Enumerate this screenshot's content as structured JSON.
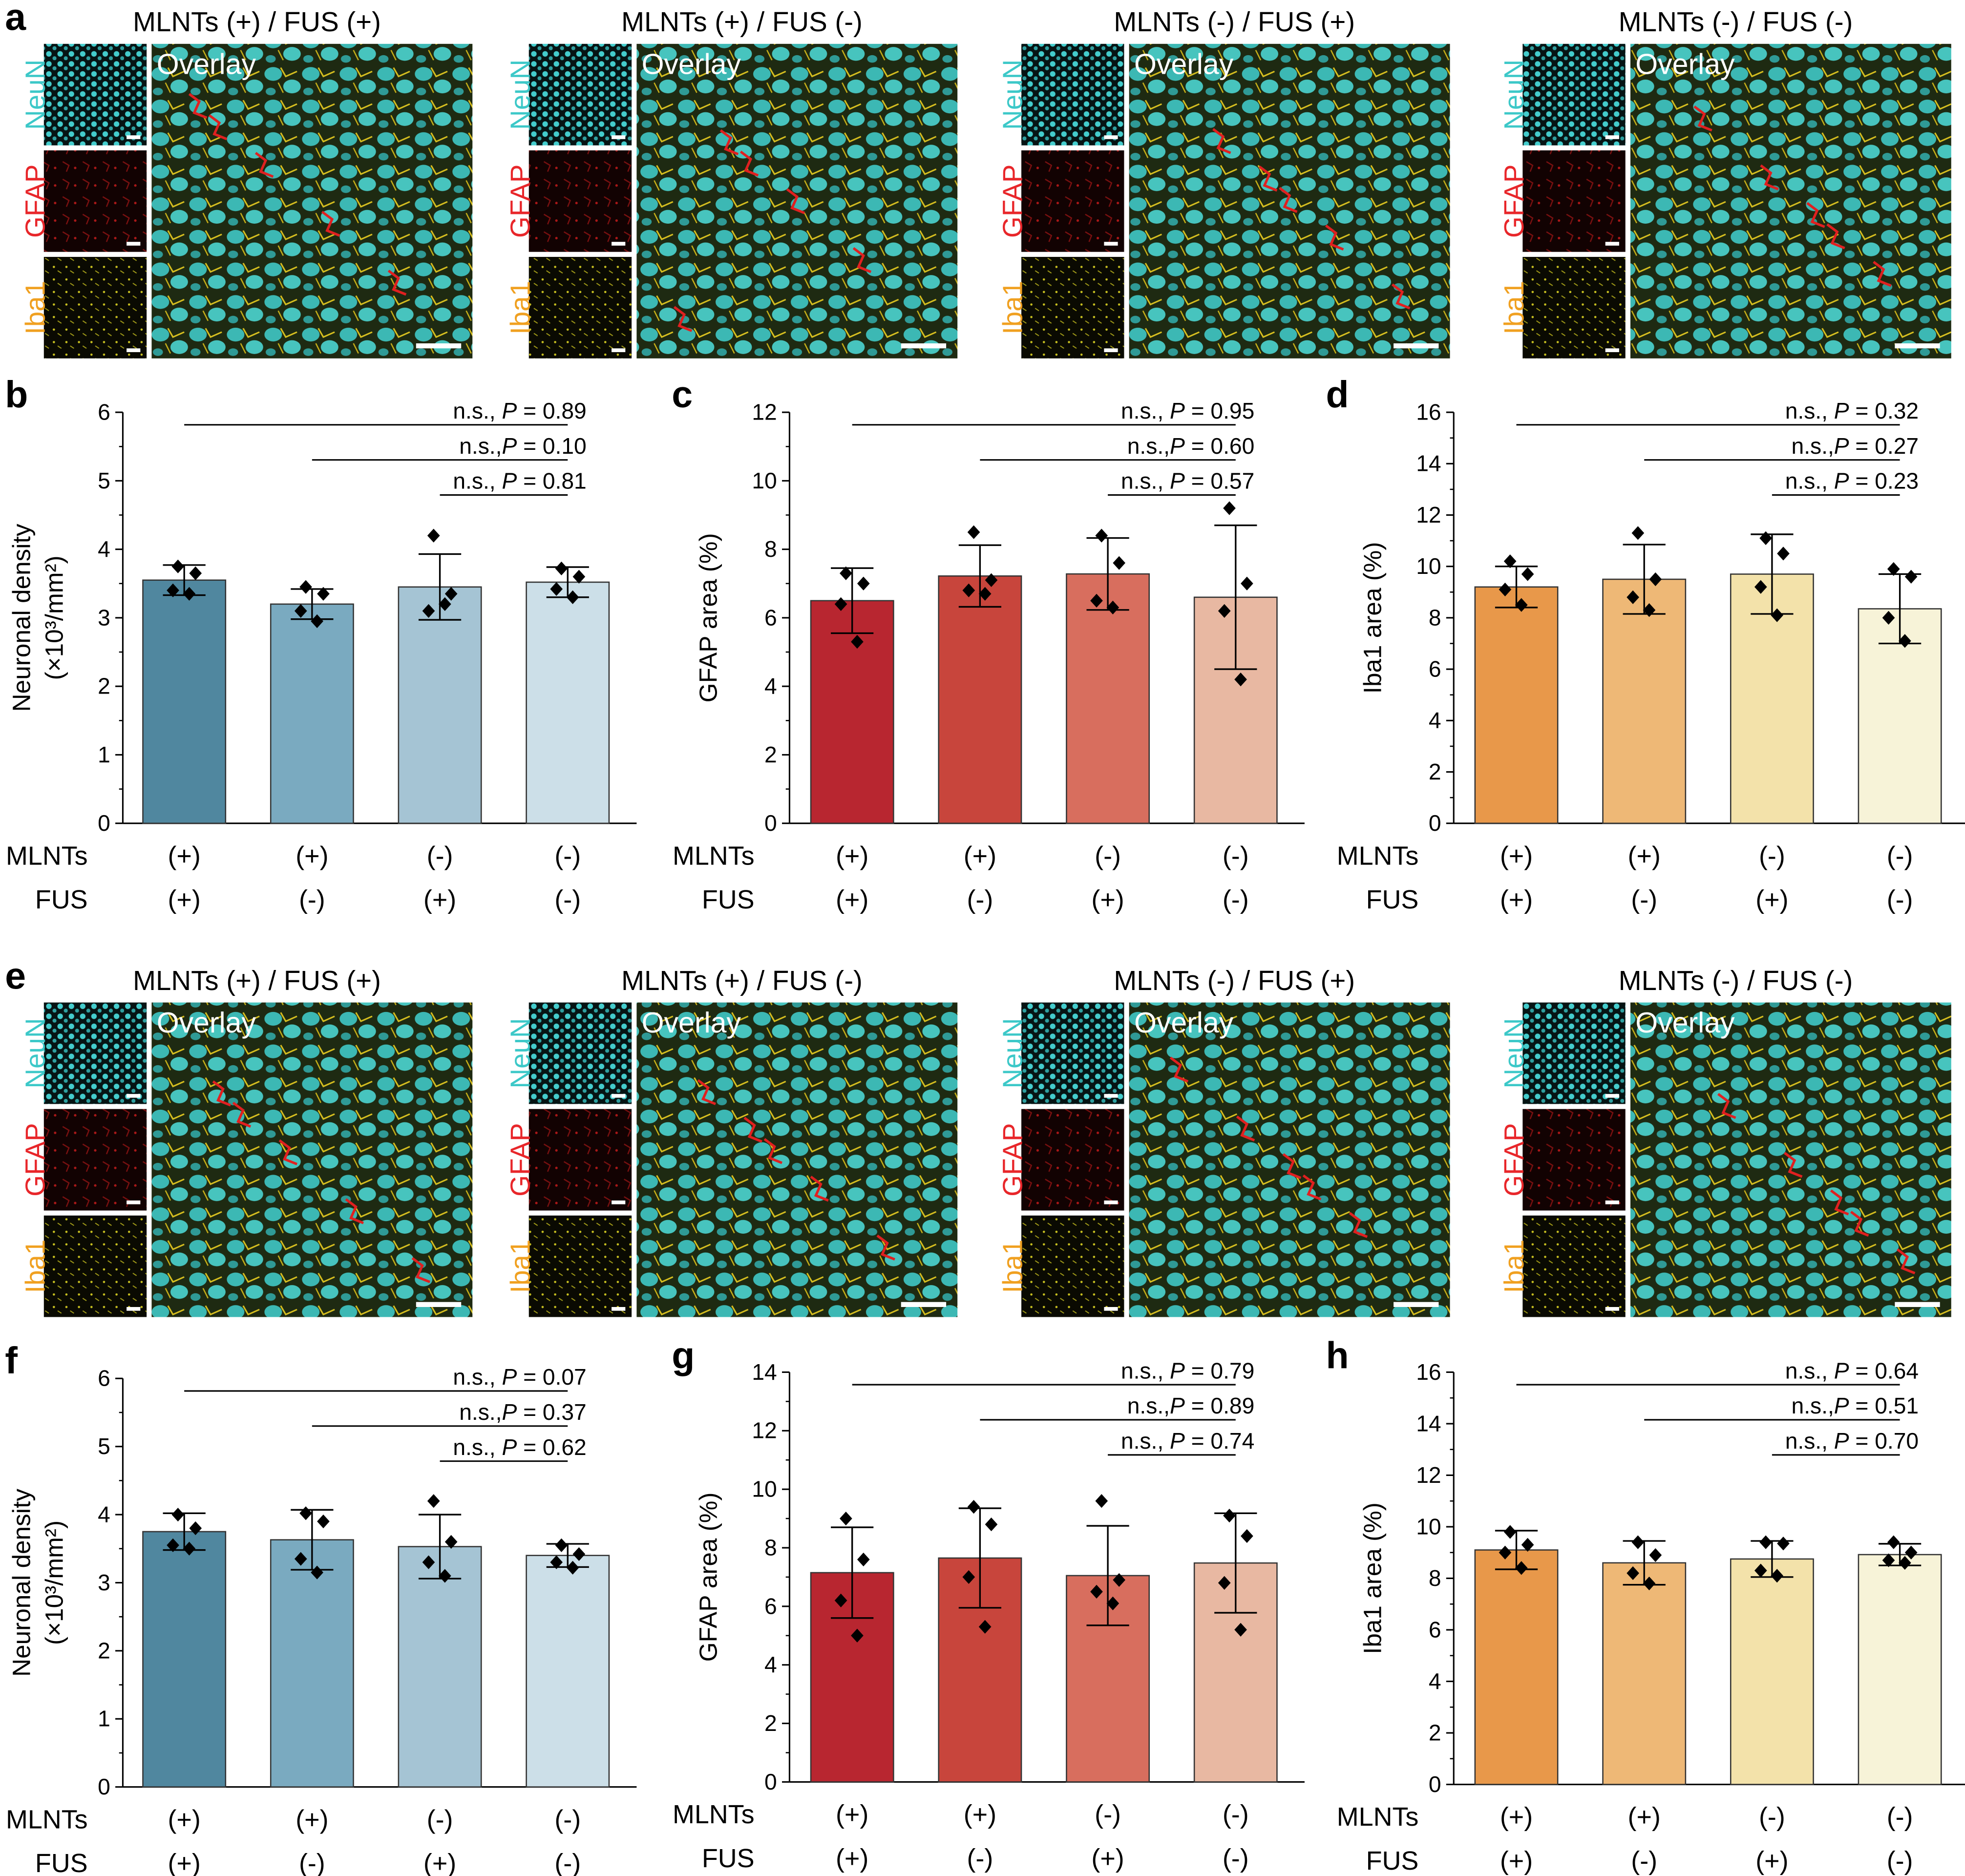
{
  "figure": {
    "panel_labels": {
      "a": "a",
      "b": "b",
      "c": "c",
      "d": "d",
      "e": "e",
      "f": "f",
      "g": "g",
      "h": "h"
    },
    "micrograph_rows": [
      {
        "id": "a",
        "panels": [
          {
            "title": "MLNTs (+) / FUS (+)",
            "channels": [
              "NeuN",
              "GFAP",
              "Iba1"
            ],
            "overlay_label": "Overlay"
          },
          {
            "title": "MLNTs (+) / FUS (-)",
            "channels": [
              "NeuN",
              "GFAP",
              "Iba1"
            ],
            "overlay_label": "Overlay"
          },
          {
            "title": "MLNTs (-) / FUS (+)",
            "channels": [
              "NeuN",
              "GFAP",
              "Iba1"
            ],
            "overlay_label": "Overlay"
          },
          {
            "title": "MLNTs (-) / FUS (-)",
            "channels": [
              "NeuN",
              "GFAP",
              "Iba1"
            ],
            "overlay_label": "Overlay"
          }
        ]
      },
      {
        "id": "e",
        "panels": [
          {
            "title": "MLNTs (+) / FUS (+)",
            "channels": [
              "NeuN",
              "GFAP",
              "Iba1"
            ],
            "overlay_label": "Overlay"
          },
          {
            "title": "MLNTs (+) / FUS (-)",
            "channels": [
              "NeuN",
              "GFAP",
              "Iba1"
            ],
            "overlay_label": "Overlay"
          },
          {
            "title": "MLNTs (-) / FUS (+)",
            "channels": [
              "NeuN",
              "GFAP",
              "Iba1"
            ],
            "overlay_label": "Overlay"
          },
          {
            "title": "MLNTs (-) / FUS (-)",
            "channels": [
              "NeuN",
              "GFAP",
              "Iba1"
            ],
            "overlay_label": "Overlay"
          }
        ]
      }
    ],
    "channel_colors": {
      "NeuN": "#3cc8c8",
      "GFAP": "#e8262a",
      "Iba1": "#f0a020"
    },
    "group_row_labels": [
      "MLNTs",
      "FUS"
    ],
    "group_values": {
      "MLNTs": [
        "(+)",
        "(+)",
        "(-)",
        "(-)"
      ],
      "FUS": [
        "(+)",
        "(-)",
        "(+)",
        "(-)"
      ]
    }
  },
  "chart_data": [
    {
      "panel": "b",
      "type": "bar",
      "ylabel": "Neuronal density",
      "ylabel2": "(×10³/mm²)",
      "ylim": [
        0,
        6
      ],
      "yticks": [
        "0",
        "1",
        "2",
        "3",
        "4",
        "5",
        "6"
      ],
      "categories": [
        "(+)/(+)",
        "(+)/(-)",
        "(-)/(+)",
        "(-)/(-)"
      ],
      "values": [
        3.55,
        3.2,
        3.45,
        3.52
      ],
      "errors": [
        0.22,
        0.22,
        0.48,
        0.22
      ],
      "points": [
        [
          3.75,
          3.65,
          3.4,
          3.35
        ],
        [
          3.45,
          3.35,
          3.1,
          2.95
        ],
        [
          4.2,
          3.35,
          3.1,
          3.2
        ],
        [
          3.72,
          3.6,
          3.42,
          3.3
        ]
      ],
      "colors": [
        "#50879f",
        "#7aaac0",
        "#a5c4d4",
        "#ccdfe8"
      ],
      "comparisons": [
        {
          "from": 0,
          "to": 3,
          "level": 0,
          "ns": "n.s., ",
          "p": "P",
          "value": " = 0.89"
        },
        {
          "from": 1,
          "to": 3,
          "level": 1,
          "ns": "n.s.,",
          "p": "P",
          "value": " = 0.10"
        },
        {
          "from": 2,
          "to": 3,
          "level": 2,
          "ns": "n.s., ",
          "p": "P",
          "value": " = 0.81"
        }
      ]
    },
    {
      "panel": "c",
      "type": "bar",
      "ylabel": "GFAP area (%)",
      "ylabel2": "",
      "ylim": [
        0,
        12
      ],
      "yticks": [
        "0",
        "2",
        "4",
        "6",
        "8",
        "10",
        "12"
      ],
      "categories": [
        "(+)/(+)",
        "(+)/(-)",
        "(-)/(+)",
        "(-)/(-)"
      ],
      "values": [
        6.5,
        7.22,
        7.28,
        6.6
      ],
      "errors": [
        0.95,
        0.9,
        1.05,
        2.1
      ],
      "points": [
        [
          7.3,
          7.0,
          6.4,
          5.3
        ],
        [
          8.5,
          7.1,
          6.8,
          6.7
        ],
        [
          8.4,
          7.6,
          6.5,
          6.3
        ],
        [
          9.2,
          7.0,
          6.2,
          4.2
        ]
      ],
      "colors": [
        "#b82630",
        "#c8453c",
        "#d86e5e",
        "#e8b8a2"
      ],
      "comparisons": [
        {
          "from": 0,
          "to": 3,
          "level": 0,
          "ns": "n.s., ",
          "p": "P",
          "value": " = 0.95"
        },
        {
          "from": 1,
          "to": 3,
          "level": 1,
          "ns": "n.s.,",
          "p": "P",
          "value": " = 0.60"
        },
        {
          "from": 2,
          "to": 3,
          "level": 2,
          "ns": "n.s., ",
          "p": "P",
          "value": " = 0.57"
        }
      ]
    },
    {
      "panel": "d",
      "type": "bar",
      "ylabel": "Iba1 area (%)",
      "ylabel2": "",
      "ylim": [
        0,
        16
      ],
      "yticks": [
        "0",
        "2",
        "4",
        "6",
        "8",
        "10",
        "12",
        "14",
        "16"
      ],
      "categories": [
        "(+)/(+)",
        "(+)/(-)",
        "(-)/(+)",
        "(-)/(-)"
      ],
      "values": [
        9.2,
        9.5,
        9.7,
        8.35
      ],
      "errors": [
        0.8,
        1.35,
        1.55,
        1.35
      ],
      "points": [
        [
          10.2,
          9.7,
          9.1,
          8.5
        ],
        [
          11.3,
          9.5,
          8.8,
          8.3
        ],
        [
          11.1,
          10.5,
          9.2,
          8.1
        ],
        [
          9.9,
          9.6,
          8.0,
          7.1
        ]
      ],
      "colors": [
        "#e8984a",
        "#eeb876",
        "#f3e2aa",
        "#f7f3d8"
      ],
      "comparisons": [
        {
          "from": 0,
          "to": 3,
          "level": 0,
          "ns": "n.s., ",
          "p": "P",
          "value": " = 0.32"
        },
        {
          "from": 1,
          "to": 3,
          "level": 1,
          "ns": "n.s.,",
          "p": "P",
          "value": " = 0.27"
        },
        {
          "from": 2,
          "to": 3,
          "level": 2,
          "ns": "n.s., ",
          "p": "P",
          "value": " = 0.23"
        }
      ]
    },
    {
      "panel": "f",
      "type": "bar",
      "ylabel": "Neuronal density",
      "ylabel2": "(×10³/mm²)",
      "ylim": [
        0,
        6
      ],
      "yticks": [
        "0",
        "1",
        "2",
        "3",
        "4",
        "5",
        "6"
      ],
      "categories": [
        "(+)/(+)",
        "(+)/(-)",
        "(-)/(+)",
        "(-)/(-)"
      ],
      "values": [
        3.75,
        3.63,
        3.53,
        3.4
      ],
      "errors": [
        0.27,
        0.44,
        0.47,
        0.17
      ],
      "points": [
        [
          4.0,
          3.8,
          3.55,
          3.5
        ],
        [
          4.02,
          3.9,
          3.35,
          3.15
        ],
        [
          4.2,
          3.6,
          3.3,
          3.1
        ],
        [
          3.55,
          3.42,
          3.3,
          3.22
        ]
      ],
      "colors": [
        "#50879f",
        "#7aaac0",
        "#a5c4d4",
        "#ccdfe8"
      ],
      "comparisons": [
        {
          "from": 0,
          "to": 3,
          "level": 0,
          "ns": "n.s., ",
          "p": "P",
          "value": " = 0.07"
        },
        {
          "from": 1,
          "to": 3,
          "level": 1,
          "ns": "n.s.,",
          "p": "P",
          "value": " = 0.37"
        },
        {
          "from": 2,
          "to": 3,
          "level": 2,
          "ns": "n.s., ",
          "p": "P",
          "value": " = 0.62"
        }
      ]
    },
    {
      "panel": "g",
      "type": "bar",
      "ylabel": "GFAP area (%)",
      "ylabel2": "",
      "ylim": [
        0,
        14
      ],
      "yticks": [
        "0",
        "2",
        "4",
        "6",
        "8",
        "10",
        "12",
        "14"
      ],
      "categories": [
        "(+)/(+)",
        "(+)/(-)",
        "(-)/(+)",
        "(-)/(-)"
      ],
      "values": [
        7.15,
        7.65,
        7.05,
        7.48
      ],
      "errors": [
        1.55,
        1.7,
        1.7,
        1.7
      ],
      "points": [
        [
          9.0,
          7.6,
          6.2,
          5.0
        ],
        [
          9.4,
          8.8,
          7.0,
          5.3
        ],
        [
          9.6,
          6.9,
          6.5,
          6.1
        ],
        [
          9.1,
          8.4,
          6.8,
          5.2
        ]
      ],
      "colors": [
        "#b82630",
        "#c8453c",
        "#d86e5e",
        "#e8b8a2"
      ],
      "comparisons": [
        {
          "from": 0,
          "to": 3,
          "level": 0,
          "ns": "n.s., ",
          "p": "P",
          "value": " = 0.79"
        },
        {
          "from": 1,
          "to": 3,
          "level": 1,
          "ns": "n.s.,",
          "p": "P",
          "value": " = 0.89"
        },
        {
          "from": 2,
          "to": 3,
          "level": 2,
          "ns": "n.s., ",
          "p": "P",
          "value": " = 0.74"
        }
      ]
    },
    {
      "panel": "h",
      "type": "bar",
      "ylabel": "Iba1 area (%)",
      "ylabel2": "",
      "ylim": [
        0,
        16
      ],
      "yticks": [
        "0",
        "2",
        "4",
        "6",
        "8",
        "10",
        "12",
        "14",
        "16"
      ],
      "categories": [
        "(+)/(+)",
        "(+)/(-)",
        "(-)/(+)",
        "(-)/(-)"
      ],
      "values": [
        9.1,
        8.6,
        8.75,
        8.92
      ],
      "errors": [
        0.75,
        0.85,
        0.7,
        0.42
      ],
      "points": [
        [
          9.8,
          9.3,
          9.0,
          8.4
        ],
        [
          9.4,
          8.9,
          8.2,
          7.8
        ],
        [
          9.4,
          9.35,
          8.3,
          8.1
        ],
        [
          9.4,
          9.0,
          8.7,
          8.6
        ]
      ],
      "colors": [
        "#e8984a",
        "#eeb876",
        "#f3e2aa",
        "#f7f3d8"
      ],
      "comparisons": [
        {
          "from": 0,
          "to": 3,
          "level": 0,
          "ns": "n.s., ",
          "p": "P",
          "value": " = 0.64"
        },
        {
          "from": 1,
          "to": 3,
          "level": 1,
          "ns": "n.s.,",
          "p": "P",
          "value": " = 0.51"
        },
        {
          "from": 2,
          "to": 3,
          "level": 2,
          "ns": "n.s., ",
          "p": "P",
          "value": " = 0.70"
        }
      ]
    }
  ]
}
